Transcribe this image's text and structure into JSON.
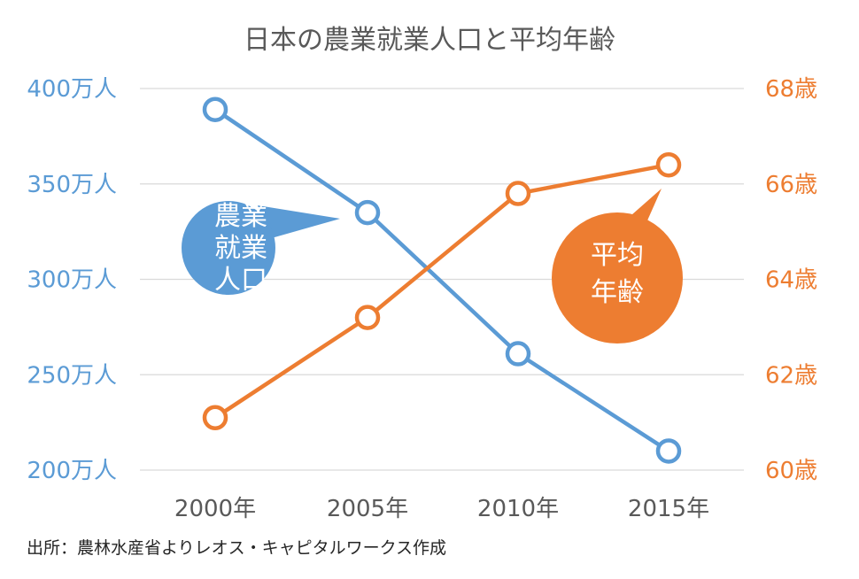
{
  "chart_data": {
    "type": "line",
    "title": "日本の農業就業人口と平均年齢",
    "categories": [
      "2000年",
      "2005年",
      "2010年",
      "2015年"
    ],
    "x": [
      2000,
      2005,
      2010,
      2015
    ],
    "series": [
      {
        "name_lines": [
          "農業",
          "就業",
          "人口"
        ],
        "axis": "left",
        "color": "#5B9BD5",
        "values": [
          389,
          335,
          261,
          210
        ]
      },
      {
        "name_lines": [
          "平均",
          "年齢"
        ],
        "axis": "right",
        "color": "#ED7D31",
        "values": [
          61.1,
          63.2,
          65.8,
          66.4
        ]
      }
    ],
    "y_left": {
      "ticks": [
        200,
        250,
        300,
        350,
        400
      ],
      "tick_labels": [
        "200万人",
        "250万人",
        "300万人",
        "350万人",
        "400万人"
      ],
      "ylim": [
        200,
        400
      ],
      "color": "#5B9BD5"
    },
    "y_right": {
      "ticks": [
        60,
        62,
        64,
        66,
        68
      ],
      "tick_labels": [
        "60歳",
        "62歳",
        "64歳",
        "66歳",
        "68歳"
      ],
      "ylim": [
        60,
        68
      ],
      "color": "#ED7D31"
    },
    "grid": true,
    "gridline_color": "#D9D9D9",
    "source_note": "出所：農林水産省よりレオス・キャピタルワークス作成"
  }
}
